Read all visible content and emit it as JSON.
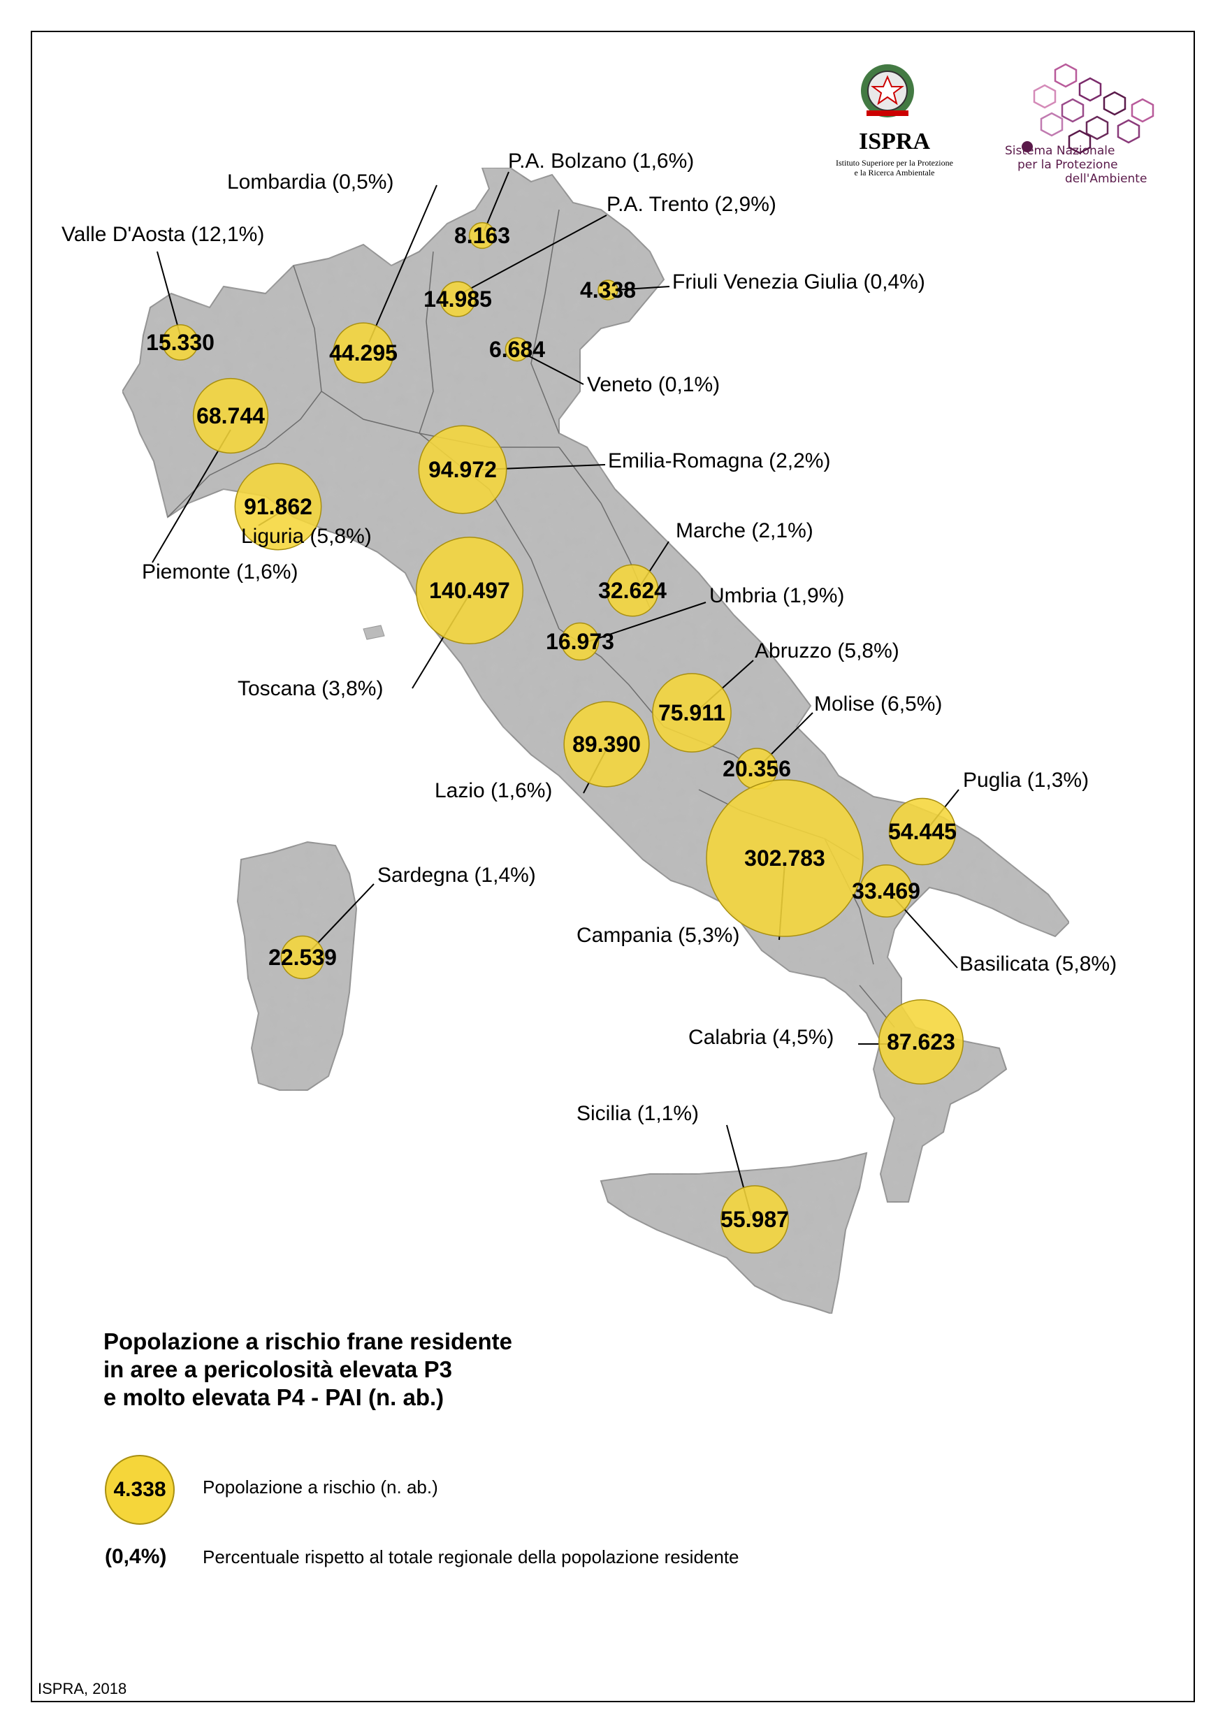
{
  "logos": {
    "ispra_name": "ISPRA",
    "ispra_sub_line1": "Istituto Superiore per la Protezione",
    "ispra_sub_line2": "e la Ricerca Ambientale",
    "snpa_line1": "Sistema Nazionale",
    "snpa_line2": "per la Protezione",
    "snpa_line3": "dell'Ambiente",
    "emblem_icon": "italian-republic-emblem-icon",
    "snpa_icon": "snpa-hexagon-network-icon",
    "snpa_color": "#5a1a4a"
  },
  "colors": {
    "bubble_fill": "#f5d63a",
    "bubble_stroke": "#a88f10",
    "land": "#b9b9b9"
  },
  "regions": [
    {
      "name": "Valle D'Aosta",
      "label": "Valle D'Aosta (12,1%)",
      "value": "15.330",
      "population": 15330,
      "pct": "12,1%"
    },
    {
      "name": "Lombardia",
      "label": "Lombardia (0,5%)",
      "value": "44.295",
      "population": 44295,
      "pct": "0,5%"
    },
    {
      "name": "P.A. Bolzano",
      "label": "P.A. Bolzano (1,6%)",
      "value": "8.163",
      "population": 8163,
      "pct": "1,6%"
    },
    {
      "name": "P.A. Trento",
      "label": "P.A. Trento (2,9%)",
      "value": "14.985",
      "population": 14985,
      "pct": "2,9%"
    },
    {
      "name": "Friuli Venezia Giulia",
      "label": "Friuli Venezia Giulia (0,4%)",
      "value": "4.338",
      "population": 4338,
      "pct": "0,4%"
    },
    {
      "name": "Veneto",
      "label": "Veneto (0,1%)",
      "value": "6.684",
      "population": 6684,
      "pct": "0,1%"
    },
    {
      "name": "Piemonte",
      "label": "Piemonte (1,6%)",
      "value": "68.744",
      "population": 68744,
      "pct": "1,6%"
    },
    {
      "name": "Emilia-Romagna",
      "label": "Emilia-Romagna (2,2%)",
      "value": "94.972",
      "population": 94972,
      "pct": "2,2%"
    },
    {
      "name": "Liguria",
      "label": "Liguria (5,8%)",
      "value": "91.862",
      "population": 91862,
      "pct": "5,8%"
    },
    {
      "name": "Toscana",
      "label": "Toscana (3,8%)",
      "value": "140.497",
      "population": 140497,
      "pct": "3,8%"
    },
    {
      "name": "Marche",
      "label": "Marche (2,1%)",
      "value": "32.624",
      "population": 32624,
      "pct": "2,1%"
    },
    {
      "name": "Umbria",
      "label": "Umbria (1,9%)",
      "value": "16.973",
      "population": 16973,
      "pct": "1,9%"
    },
    {
      "name": "Abruzzo",
      "label": "Abruzzo (5,8%)",
      "value": "75.911",
      "population": 75911,
      "pct": "5,8%"
    },
    {
      "name": "Lazio",
      "label": "Lazio (1,6%)",
      "value": "89.390",
      "population": 89390,
      "pct": "1,6%"
    },
    {
      "name": "Molise",
      "label": "Molise (6,5%)",
      "value": "20.356",
      "population": 20356,
      "pct": "6,5%"
    },
    {
      "name": "Puglia",
      "label": "Puglia (1,3%)",
      "value": "54.445",
      "population": 54445,
      "pct": "1,3%"
    },
    {
      "name": "Campania",
      "label": "Campania (5,3%)",
      "value": "302.783",
      "population": 302783,
      "pct": "5,3%"
    },
    {
      "name": "Basilicata",
      "label": "Basilicata (5,8%)",
      "value": "33.469",
      "population": 33469,
      "pct": "5,8%"
    },
    {
      "name": "Sardegna",
      "label": "Sardegna (1,4%)",
      "value": "22.539",
      "population": 22539,
      "pct": "1,4%"
    },
    {
      "name": "Calabria",
      "label": "Calabria (4,5%)",
      "value": "87.623",
      "population": 87623,
      "pct": "4,5%"
    },
    {
      "name": "Sicilia",
      "label": "Sicilia (1,1%)",
      "value": "55.987",
      "population": 55987,
      "pct": "1,1%"
    }
  ],
  "legend": {
    "title_line1": "Popolazione a rischio frane residente",
    "title_line2": "in aree a pericolosità elevata P3",
    "title_line3": "e molto elevata P4 - PAI (n. ab.)",
    "bubble_value": "4.338",
    "bubble_desc": "Popolazione a rischio (n. ab.)",
    "pct_value": "(0,4%)",
    "pct_desc": "Percentuale rispetto al totale regionale della popolazione residente"
  },
  "credit": "ISPRA, 2018"
}
